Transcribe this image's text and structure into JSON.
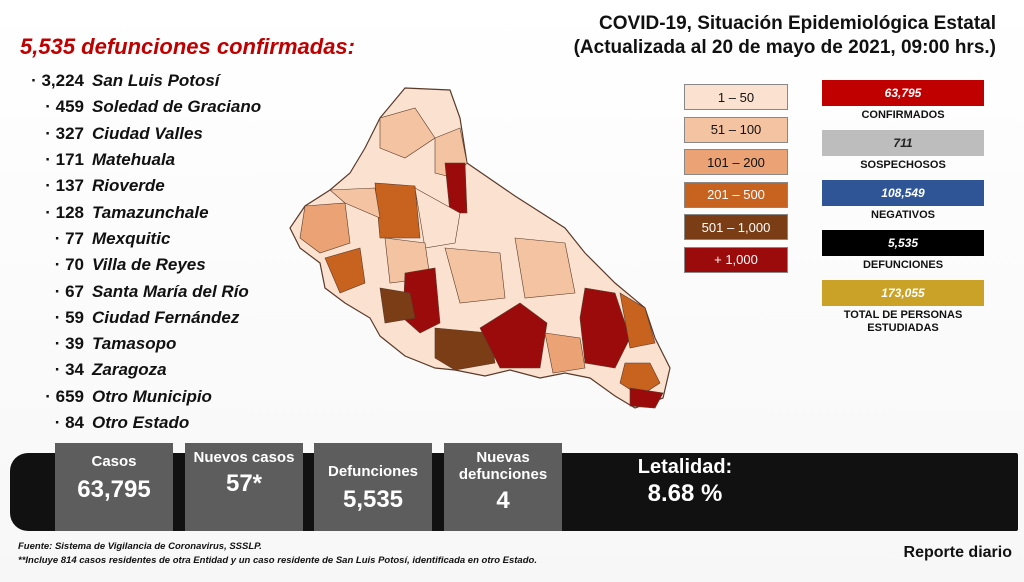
{
  "header": {
    "title_line1": "COVID-19, Situación Epidemiológica Estatal",
    "title_line2": "(Actualizada al 20 de mayo de 2021, 09:00 hrs.)"
  },
  "deaths_headline": "5,535 defunciones confirmadas:",
  "municipalities": [
    {
      "count": "3,224",
      "name": "San Luis Potosí"
    },
    {
      "count": "459",
      "name": "Soledad de Graciano"
    },
    {
      "count": "327",
      "name": "Ciudad Valles"
    },
    {
      "count": "171",
      "name": "Matehuala"
    },
    {
      "count": "137",
      "name": "Rioverde"
    },
    {
      "count": "128",
      "name": "Tamazunchale"
    },
    {
      "count": "77",
      "name": "Mexquitic"
    },
    {
      "count": "70",
      "name": "Villa de Reyes"
    },
    {
      "count": "67",
      "name": "Santa María del Río"
    },
    {
      "count": "59",
      "name": "Ciudad Fernández"
    },
    {
      "count": "39",
      "name": "Tamasopo"
    },
    {
      "count": "34",
      "name": "Zaragoza"
    },
    {
      "count": "659",
      "name": "Otro Municipio"
    },
    {
      "count": "84",
      "name": "Otro Estado"
    }
  ],
  "legend": [
    {
      "label": "1 – 50",
      "color": "#fbe1cf",
      "text_color": "#111111"
    },
    {
      "label": "51 – 100",
      "color": "#f4c3a1",
      "text_color": "#111111"
    },
    {
      "label": "101 – 200",
      "color": "#eba274",
      "text_color": "#111111"
    },
    {
      "label": "201 – 500",
      "color": "#c8621f",
      "text_color": "#ffffff"
    },
    {
      "label": "501 – 1,000",
      "color": "#7b3d15",
      "text_color": "#ffffff"
    },
    {
      "label": "+ 1,000",
      "color": "#9c0b0b",
      "text_color": "#ffffff"
    }
  ],
  "stats": [
    {
      "value": "63,795",
      "label": "CONFIRMADOS",
      "color": "#c00000"
    },
    {
      "value": "711",
      "label": "SOSPECHOSOS",
      "color": "#bdbdbd"
    },
    {
      "value": "108,549",
      "label": "NEGATIVOS",
      "color": "#2f5597"
    },
    {
      "value": "5,535",
      "label": "DEFUNCIONES",
      "color": "#000000"
    },
    {
      "value": "173,055",
      "label": "TOTAL DE PERSONAS ESTUDIADAS",
      "color": "#c9a227"
    }
  ],
  "summary": {
    "cases_label": "Casos",
    "cases_value": "63,795",
    "new_cases_label": "Nuevos casos",
    "new_cases_value": "57*",
    "deaths_label": "Defunciones",
    "deaths_value": "5,535",
    "new_deaths_label": "Nuevas defunciones",
    "new_deaths_value": "4",
    "lethality_label": "Letalidad:",
    "lethality_value": "8.68 %"
  },
  "footnotes": {
    "source": "Fuente: Sistema de Vigilancia de Coronavirus, SSSLP.",
    "note": "**Incluye 814 casos residentes de otra Entidad y un caso residente de San Luis Potosí, identificada en otro Estado."
  },
  "report_label": "Reporte diario"
}
